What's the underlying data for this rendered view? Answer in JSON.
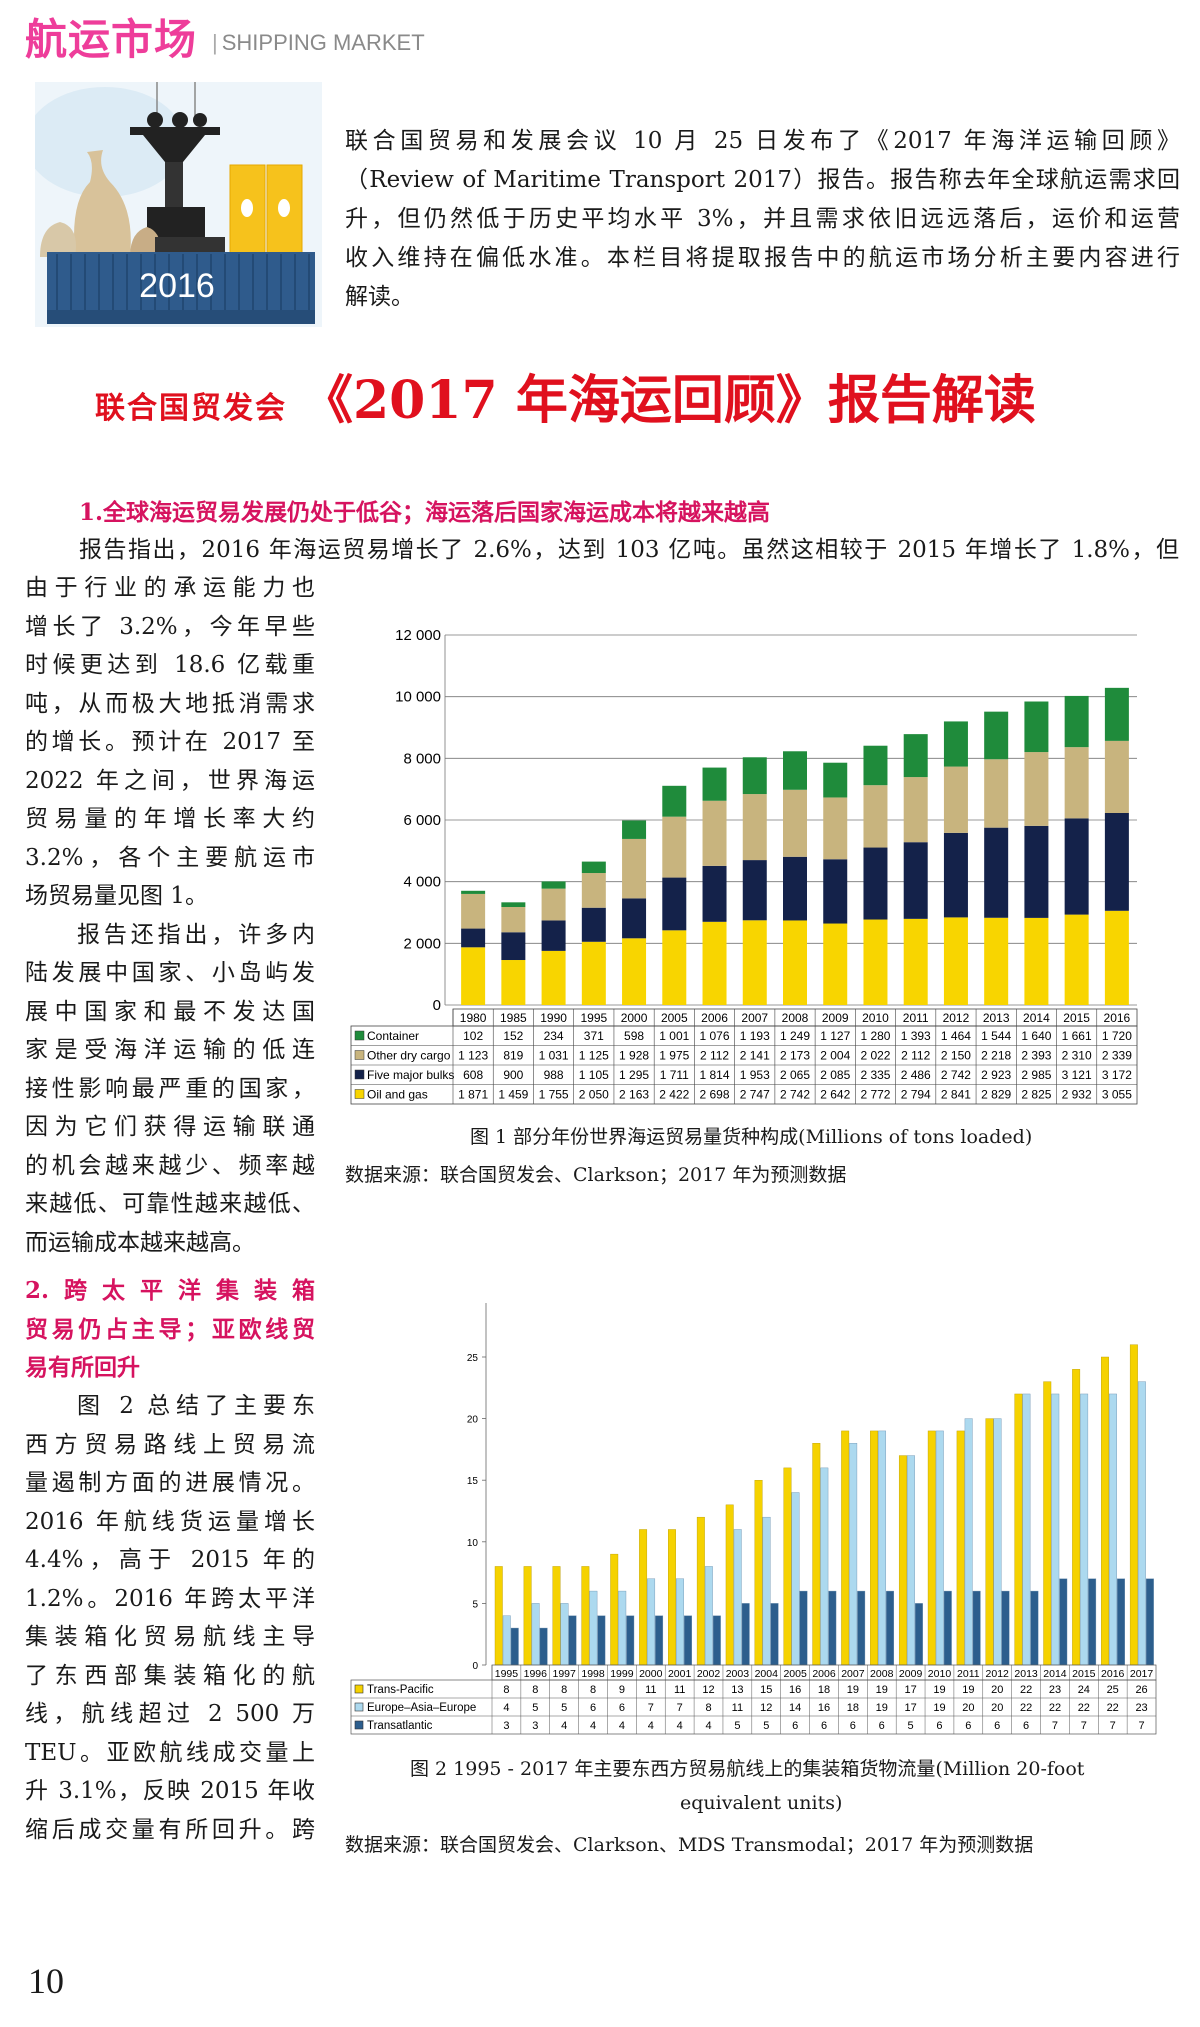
{
  "header": {
    "section_cn": "航运市场",
    "section_en": "SHIPPING MARKET",
    "separator": "|"
  },
  "illustration": {
    "label": "2016"
  },
  "intro_lines": [
    "联合国贸易和发展会议 10 月 25 日发布了《2017 年海洋运输回顾》",
    "（Review of Maritime Transport 2017）报告。报告称去年全球航运需求回",
    "升，但仍然低于历史平均水平 3%，并且需求依旧远远落后，运价和运营",
    "收入维持在偏低水准。本栏目将提取报告中的航运市场分析主要内容进行",
    "解读。"
  ],
  "title": {
    "prefix": "联合国贸发会",
    "main": "《2017 年海运回顾》报告解读"
  },
  "section1": {
    "heading": "1.全球海运贸易发展仍处于低谷；海运落后国家海运成本将越来越高",
    "full_line": "报告指出，2016 年海运贸易增长了 2.6%，达到 103 亿吨。虽然这相较于 2015 年增长了 1.8%，但",
    "column_lines": [
      "由于行业的承运能力也",
      "增长了 3.2%，今年早些",
      "时候更达到 18.6 亿载重",
      "吨，从而极大地抵消需求",
      "的增长。预计在 2017 至",
      "2022 年之间，世界海运",
      "贸易量的年增长率大约",
      "3.2%，各个主要航运市",
      "场贸易量见图 1。",
      "报告还指出，许多内",
      "陆发展中国家、小岛屿发",
      "展中国家和最不发达国",
      "家是受海洋运输的低连",
      "接性影响最严重的国家，",
      "因为它们获得运输联通",
      "的机会越来越少、频率越",
      "来越低、可靠性越来越低、",
      "而运输成本越来越高。"
    ]
  },
  "section2": {
    "heading_lines": [
      "2.跨太平洋集装箱",
      "贸易仍占主导；亚欧线贸",
      "易有所回升"
    ],
    "column_lines": [
      "图 2 总结了主要东",
      "西方贸易路线上贸易流",
      "量遏制方面的进展情况。",
      "2016 年航线货运量增长",
      "4.4%，高于 2015 年的",
      "1.2%。2016 年跨太平洋",
      "集装箱化贸易航线主导",
      "了东西部集装箱化的航",
      "线，航线超过 2 500 万",
      "TEU。亚欧航线成交量上",
      "升 3.1%，反映 2015 年收",
      "缩后成交量有所回升。跨"
    ]
  },
  "figure1": {
    "caption": "图 1  部分年份世界海运贸易量货种构成(Millions of tons loaded)",
    "source": "数据来源：联合国贸发会、Clarkson；2017 年为预测数据"
  },
  "figure2": {
    "caption_line1": "图 2 1995 - 2017 年主要东西方贸易航线上的集装箱货物流量(Million 20-foot",
    "caption_line2": "equivalent units)",
    "source": "数据来源：联合国贸发会、Clarkson、MDS Transmodal；2017 年为预测数据"
  },
  "page_number": "10",
  "chart_data": [
    {
      "type": "bar",
      "stacked": true,
      "categories": [
        "1980",
        "1985",
        "1990",
        "1995",
        "2000",
        "2005",
        "2006",
        "2007",
        "2008",
        "2009",
        "2010",
        "2011",
        "2012",
        "2013",
        "2014",
        "2015",
        "2016"
      ],
      "ylim": [
        0,
        12000
      ],
      "yticks": [
        "0",
        "2 000",
        "4 000",
        "6 000",
        "8 000",
        "10 000",
        "12 000"
      ],
      "grid": true,
      "series": [
        {
          "name": "Container",
          "color": "#1f8b3b",
          "values": [
            "102",
            "152",
            "234",
            "371",
            "598",
            "1 001",
            "1 076",
            "1 193",
            "1 249",
            "1 127",
            "1 280",
            "1 393",
            "1 464",
            "1 544",
            "1 640",
            "1 661",
            "1 720"
          ]
        },
        {
          "name": "Other dry cargo",
          "color": "#c8b47e",
          "values": [
            "1 123",
            "819",
            "1 031",
            "1 125",
            "1 928",
            "1 975",
            "2 112",
            "2 141",
            "2 173",
            "2 004",
            "2 022",
            "2 112",
            "2 150",
            "2 218",
            "2 393",
            "2 310",
            "2 339"
          ]
        },
        {
          "name": "Five major bulks",
          "color": "#14224a",
          "values": [
            "608",
            "900",
            "988",
            "1 105",
            "1 295",
            "1 711",
            "1 814",
            "1 953",
            "2 065",
            "2 085",
            "2 335",
            "2 486",
            "2 742",
            "2 923",
            "2 985",
            "3 121",
            "3 172"
          ]
        },
        {
          "name": "Oil and gas",
          "color": "#f8d500",
          "values": [
            "1 871",
            "1 459",
            "1 755",
            "2 050",
            "2 163",
            "2 422",
            "2 698",
            "2 747",
            "2 742",
            "2 642",
            "2 772",
            "2 794",
            "2 841",
            "2 829",
            "2 825",
            "2 932",
            "3 055"
          ]
        }
      ]
    },
    {
      "type": "bar",
      "grouped": true,
      "categories": [
        "1995",
        "1996",
        "1997",
        "1998",
        "1999",
        "2000",
        "2001",
        "2002",
        "2003",
        "2004",
        "2005",
        "2006",
        "2007",
        "2008",
        "2009",
        "2010",
        "2011",
        "2012",
        "2013",
        "2014",
        "2015",
        "2016",
        "2017"
      ],
      "ylim": [
        0,
        25
      ],
      "yticks": [
        "0",
        "5",
        "10",
        "15",
        "20",
        "25"
      ],
      "grid": false,
      "series": [
        {
          "name": "Trans-Pacific",
          "color": "#f5d200",
          "values": [
            8,
            8,
            8,
            8,
            9,
            11,
            11,
            12,
            13,
            15,
            16,
            18,
            19,
            19,
            17,
            19,
            19,
            20,
            22,
            23,
            24,
            25,
            26
          ]
        },
        {
          "name": "Europe–Asia–Europe",
          "color": "#acd9ef",
          "values": [
            4,
            5,
            5,
            6,
            6,
            7,
            7,
            8,
            11,
            12,
            14,
            16,
            18,
            19,
            17,
            19,
            20,
            20,
            22,
            22,
            22,
            22,
            23
          ]
        },
        {
          "name": "Transatlantic",
          "color": "#2c5e8d",
          "values": [
            3,
            3,
            4,
            4,
            4,
            4,
            4,
            4,
            5,
            5,
            6,
            6,
            6,
            6,
            5,
            6,
            6,
            6,
            6,
            7,
            7,
            7,
            7
          ]
        }
      ]
    }
  ]
}
